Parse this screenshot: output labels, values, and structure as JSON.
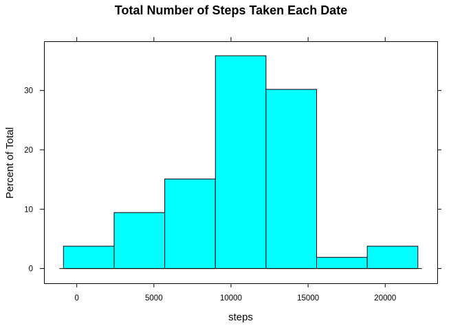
{
  "chart_data": {
    "type": "bar",
    "title": "Total Number of Steps Taken Each Date",
    "xlabel": "steps",
    "ylabel": "Percent of Total",
    "bins": [
      {
        "from": -861.8,
        "to": 2421.1,
        "value": 3.77
      },
      {
        "from": 2421.1,
        "to": 5703.9,
        "value": 9.43
      },
      {
        "from": 5703.9,
        "to": 8986.8,
        "value": 15.09
      },
      {
        "from": 8986.8,
        "to": 12269.6,
        "value": 35.85
      },
      {
        "from": 12269.6,
        "to": 15552.4,
        "value": 30.19
      },
      {
        "from": 15552.4,
        "to": 18835.3,
        "value": 1.89
      },
      {
        "from": 18835.3,
        "to": 22118.1,
        "value": 3.77
      }
    ],
    "x_ticks": [
      0,
      5000,
      10000,
      15000,
      20000
    ],
    "y_ticks": [
      0,
      10,
      20,
      30
    ],
    "xlim": [
      -2125,
      23375
    ],
    "ylim": [
      -2.48,
      38.3
    ],
    "bar_color": "#00FFFF",
    "grid": false
  }
}
